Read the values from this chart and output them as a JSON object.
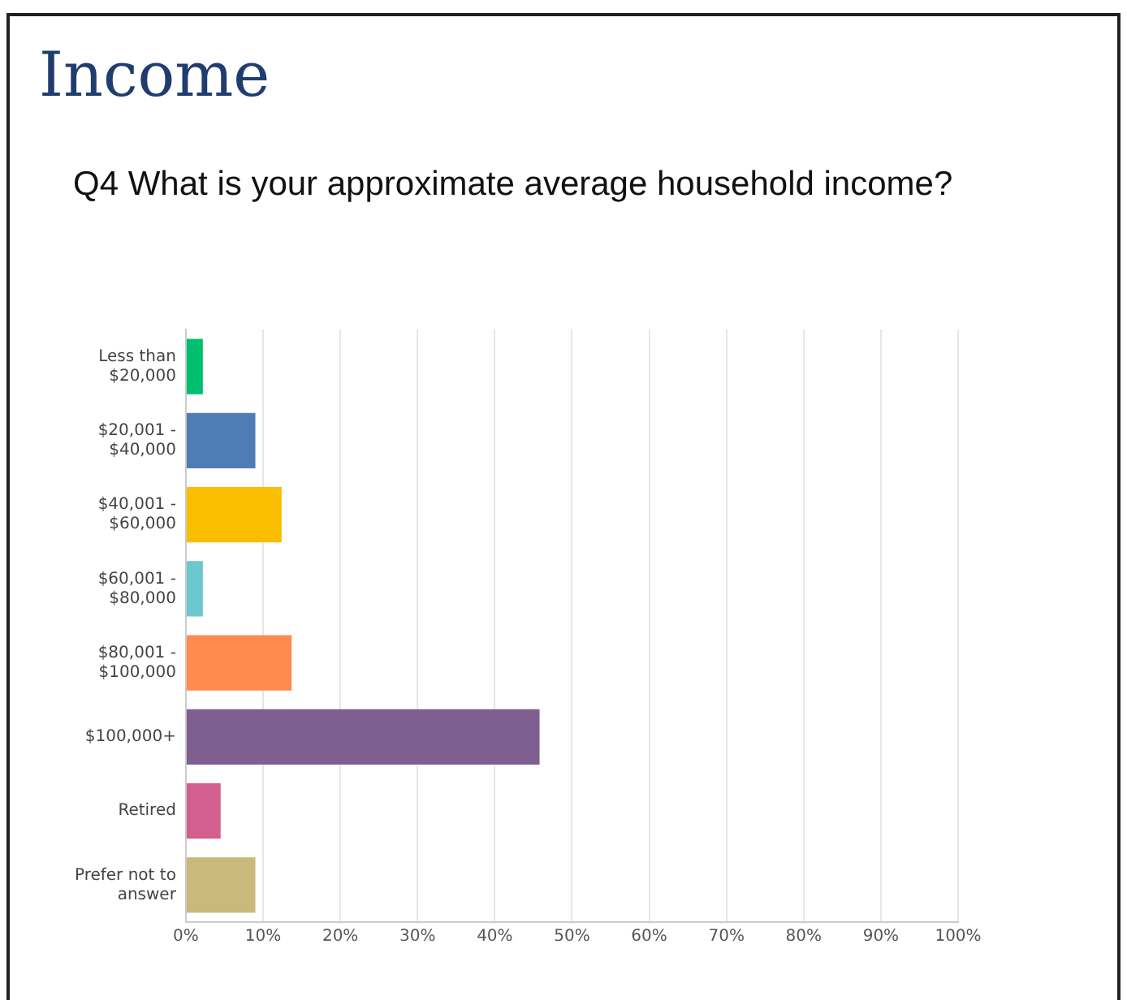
{
  "chart_data": {
    "type": "bar",
    "orientation": "horizontal",
    "title": "Income",
    "subtitle": "Q4 What is your approximate average household income?",
    "categories": [
      "Less than $20,000",
      "$20,001 - $40,000",
      "$40,001 - $60,000",
      "$60,001 - $80,000",
      "$80,001 - $100,000",
      "$100,000+",
      "Retired",
      "Prefer not to answer"
    ],
    "values": [
      2.2,
      9.0,
      12.4,
      2.2,
      13.7,
      45.8,
      4.5,
      9.0
    ],
    "colors": [
      "#00bf6f",
      "#507cb6",
      "#f9be00",
      "#6bc8cd",
      "#ff8b4f",
      "#7f5f90",
      "#d25f90",
      "#c9b97a"
    ],
    "xlim": [
      0,
      100
    ],
    "xticks": [
      {
        "value": 0,
        "label": "0%"
      },
      {
        "value": 10,
        "label": "10%"
      },
      {
        "value": 20,
        "label": "20%"
      },
      {
        "value": 30,
        "label": "30%"
      },
      {
        "value": 40,
        "label": "40%"
      },
      {
        "value": 50,
        "label": "50%"
      },
      {
        "value": 60,
        "label": "60%"
      },
      {
        "value": 70,
        "label": "70%"
      },
      {
        "value": 80,
        "label": "80%"
      },
      {
        "value": 90,
        "label": "90%"
      },
      {
        "value": 100,
        "label": "100%"
      }
    ],
    "grid": "x"
  }
}
